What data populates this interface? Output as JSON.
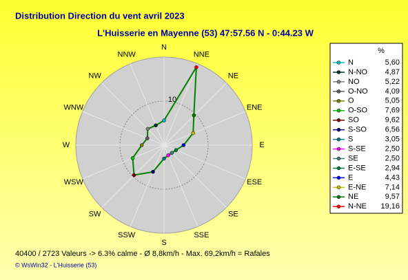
{
  "chart_data": {
    "type": "polar",
    "title": "Distribution Direction du vent   avril 2023",
    "subtitle": "L'Huisserie en Mayenne (53) 47:57.56 N - 0:44.23 W",
    "categories": [
      "N",
      "NNW",
      "NW",
      "WNW",
      "W",
      "WSW",
      "SW",
      "SSW",
      "S",
      "SSE",
      "SE",
      "ESE",
      "E",
      "ENE",
      "NE",
      "NNE"
    ],
    "legend_names": [
      "N",
      "N-NO",
      "NO",
      "O-NO",
      "O",
      "O-SO",
      "SO",
      "S-SO",
      "S",
      "S-SE",
      "SE",
      "E-SE",
      "E",
      "E-NE",
      "NE",
      "N-NE"
    ],
    "values": [
      5.6,
      4.87,
      5.22,
      4.09,
      5.05,
      7.69,
      9.62,
      6.56,
      3.05,
      2.5,
      2.5,
      2.94,
      4.43,
      7.14,
      9.57,
      19.16
    ],
    "value_labels": [
      "5,60",
      "4,87",
      "5,22",
      "4,09",
      "5,05",
      "7,69",
      "9,62",
      "6,56",
      "3,05",
      "2,50",
      "2,50",
      "2,94",
      "4,43",
      "7,14",
      "9,57",
      "19,16"
    ],
    "colors": [
      "#00c0c0",
      "#003030",
      "#808080",
      "#606060",
      "#808000",
      "#00c000",
      "#800000",
      "#000080",
      "#008080",
      "#ff00ff",
      "#408080",
      "#008040",
      "#0000ff",
      "#c0c000",
      "#008000",
      "#ff0000"
    ],
    "line_color": "#008000",
    "value_header": "%",
    "rlim": [
      0,
      20
    ],
    "rticks": [
      10
    ],
    "notes": [
      "40400 / 2723 Valeurs  -> 6.3% calme   -   Ø 8,8km/h  -  Max. 69,2km/h = Rafales",
      "© WsWin32  -  L'Huisserie (53)"
    ]
  }
}
